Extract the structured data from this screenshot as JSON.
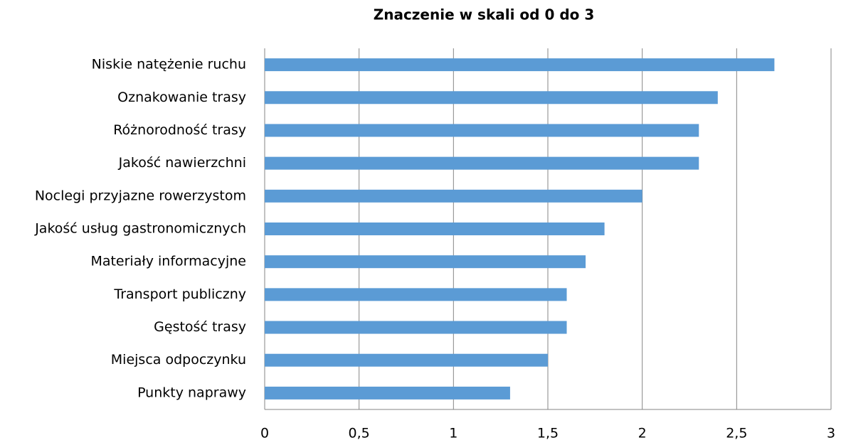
{
  "chart_data": {
    "type": "bar",
    "orientation": "horizontal",
    "title": "Znaczenie w skali od 0 do 3",
    "categories": [
      "Niskie natężenie ruchu",
      "Oznakowanie trasy",
      "Różnorodność trasy",
      "Jakość nawierzchni",
      "Noclegi przyjazne rowerzystom",
      "Jakość usług gastronomicznych",
      "Materiały informacyjne",
      "Transport publiczny",
      "Gęstość trasy",
      "Miejsca odpoczynku",
      "Punkty naprawy"
    ],
    "values": [
      2.7,
      2.4,
      2.3,
      2.3,
      2.0,
      1.8,
      1.7,
      1.6,
      1.6,
      1.5,
      1.3
    ],
    "color": "#5b9bd5",
    "xlim": [
      0,
      3
    ],
    "xticks": [
      0,
      {
        "value": 0.5,
        "label": "0,5"
      },
      1,
      {
        "value": 1.5,
        "label": "1,5"
      },
      2,
      {
        "value": 2.5,
        "label": "2,5"
      },
      3
    ],
    "grid": true
  }
}
